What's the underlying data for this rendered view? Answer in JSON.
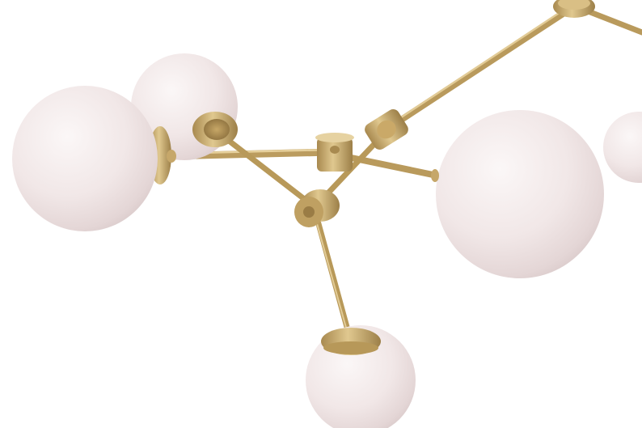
{
  "image": {
    "subject": "brass-branch-chandelier-with-opal-glass-globes",
    "colors": {
      "background": "#ffffff",
      "globe_light": "#fbf7f7",
      "globe_mid": "#efe5e5",
      "globe_shadow": "#d9caca",
      "brass_light": "#e3cc94",
      "brass_mid": "#c8aa6a",
      "brass_dark": "#8f7440"
    }
  }
}
